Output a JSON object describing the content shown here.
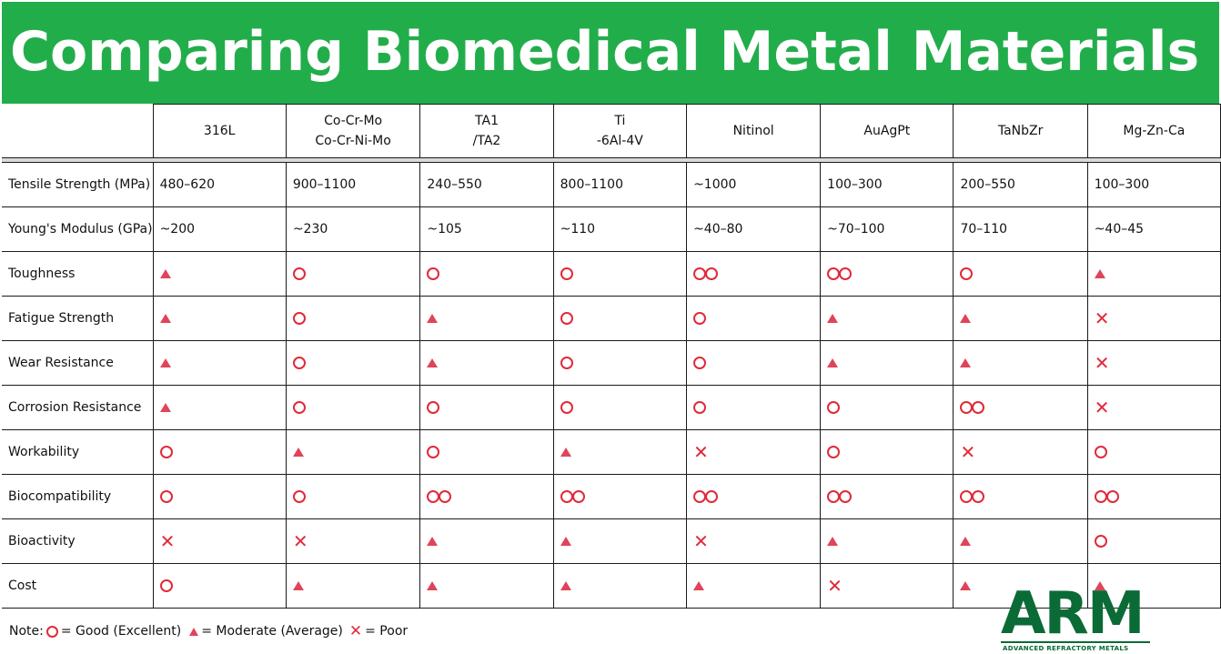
{
  "title": "Comparing Biomedical Metal Materials",
  "columns": [
    "316L",
    "Co-Cr-Mo\nCo-Cr-Ni-Mo",
    "TA1\n/TA2",
    "Ti\n-6Al-4V",
    "Nitinol",
    "AuAgPt",
    "TaNbZr",
    "Mg-Zn-Ca"
  ],
  "rows": [
    {
      "label": "Tensile Strength (MPa)",
      "cells": [
        "480–620",
        "900–1100",
        "240–550",
        "800–1100",
        "~1000",
        "100–300",
        "200–550",
        "100–300"
      ]
    },
    {
      "label": "Young's Modulus (GPa)",
      "cells": [
        "~200",
        "~230",
        "~105",
        "~110",
        "~40–80",
        "~70–100",
        "70–110",
        "~40–45"
      ]
    },
    {
      "label": "Toughness",
      "cells": [
        "tri",
        "circ",
        "circ",
        "circ",
        "circ2",
        "circ2",
        "circ",
        "tri"
      ]
    },
    {
      "label": "Fatigue Strength",
      "cells": [
        "tri",
        "circ",
        "tri",
        "circ",
        "circ",
        "tri",
        "tri",
        "cross"
      ]
    },
    {
      "label": "Wear Resistance",
      "cells": [
        "tri",
        "circ",
        "tri",
        "circ",
        "circ",
        "tri",
        "tri",
        "cross"
      ]
    },
    {
      "label": "Corrosion Resistance",
      "cells": [
        "tri",
        "circ",
        "circ",
        "circ",
        "circ",
        "circ",
        "circ2",
        "cross"
      ]
    },
    {
      "label": "Workability",
      "cells": [
        "circ",
        "tri",
        "circ",
        "tri",
        "cross",
        "circ",
        "cross",
        "circ"
      ]
    },
    {
      "label": "Biocompatibility",
      "cells": [
        "circ",
        "circ",
        "circ2",
        "circ2",
        "circ2",
        "circ2",
        "circ2",
        "circ2"
      ]
    },
    {
      "label": "Bioactivity",
      "cells": [
        "cross",
        "cross",
        "tri",
        "tri",
        "cross",
        "tri",
        "tri",
        "circ"
      ]
    },
    {
      "label": "Cost",
      "cells": [
        "circ",
        "tri",
        "tri",
        "tri",
        "tri",
        "cross",
        "tri",
        "tri"
      ]
    }
  ],
  "symbol_icons": {
    "circ": "circle-good-icon",
    "circ2": "double-circle-excellent-icon",
    "tri": "triangle-moderate-icon",
    "cross": "cross-poor-icon"
  },
  "symbol_color": "#e02a3a",
  "banner_color": "#22ad4b",
  "note": {
    "prefix": "Note:",
    "good": "= Good (Excellent)",
    "moderate": "= Moderate (Average)",
    "poor": "= Poor"
  },
  "logo": {
    "text": "ARM",
    "subtitle": "ADVANCED REFRACTORY METALS",
    "color": "#0a6b36"
  }
}
